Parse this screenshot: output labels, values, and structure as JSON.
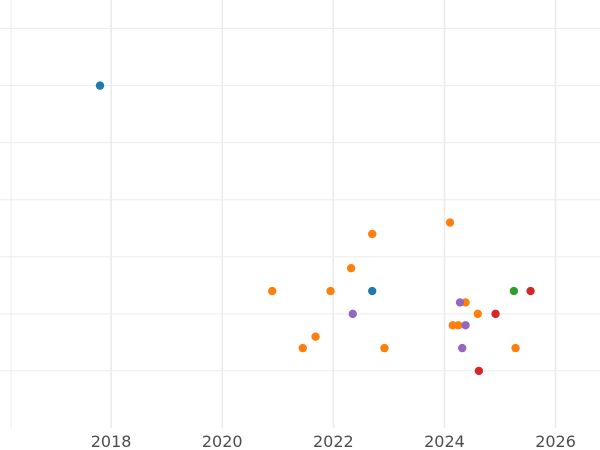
{
  "chart_data": {
    "type": "scatter",
    "title": "",
    "xlabel": "",
    "ylabel": "",
    "x_axis": {
      "min": 2016.0,
      "max": 2026.8,
      "major_ticks": [
        2018,
        2020,
        2022,
        2024,
        2026
      ],
      "minor_ticks": [
        2016.2
      ],
      "tick_labels": [
        "2018",
        "2020",
        "2022",
        "2024",
        "2026"
      ]
    },
    "y_axis": {
      "min": 0,
      "max": 7.5,
      "gridlines": [
        1,
        2,
        3,
        4,
        5,
        6,
        7
      ],
      "tick_labels": []
    },
    "grid": true,
    "legend": "none",
    "colors": {
      "blue": "#1f77b4",
      "orange": "#ff7f0e",
      "green": "#2ca02c",
      "red": "#d62728",
      "purple": "#9467bd"
    },
    "series": [
      {
        "color": "#1f77b4",
        "points": [
          {
            "x": 2017.8,
            "y": 6.0
          },
          {
            "x": 2022.7,
            "y": 2.4
          }
        ]
      },
      {
        "color": "#ff7f0e",
        "points": [
          {
            "x": 2020.9,
            "y": 2.4
          },
          {
            "x": 2021.45,
            "y": 1.4
          },
          {
            "x": 2021.68,
            "y": 1.6
          },
          {
            "x": 2021.95,
            "y": 2.4
          },
          {
            "x": 2022.32,
            "y": 2.8
          },
          {
            "x": 2022.7,
            "y": 3.4
          },
          {
            "x": 2022.92,
            "y": 1.4
          },
          {
            "x": 2024.1,
            "y": 3.6
          },
          {
            "x": 2024.15,
            "y": 1.8
          },
          {
            "x": 2024.25,
            "y": 1.8
          },
          {
            "x": 2024.38,
            "y": 2.2
          },
          {
            "x": 2024.6,
            "y": 2.0
          },
          {
            "x": 2025.28,
            "y": 1.4
          }
        ]
      },
      {
        "color": "#2ca02c",
        "points": [
          {
            "x": 2025.25,
            "y": 2.4
          }
        ]
      },
      {
        "color": "#d62728",
        "points": [
          {
            "x": 2024.62,
            "y": 1.0
          },
          {
            "x": 2024.92,
            "y": 2.0
          },
          {
            "x": 2025.55,
            "y": 2.4
          }
        ]
      },
      {
        "color": "#9467bd",
        "points": [
          {
            "x": 2022.35,
            "y": 2.0
          },
          {
            "x": 2024.28,
            "y": 2.2
          },
          {
            "x": 2024.32,
            "y": 1.4
          },
          {
            "x": 2024.38,
            "y": 1.8
          }
        ]
      }
    ]
  }
}
